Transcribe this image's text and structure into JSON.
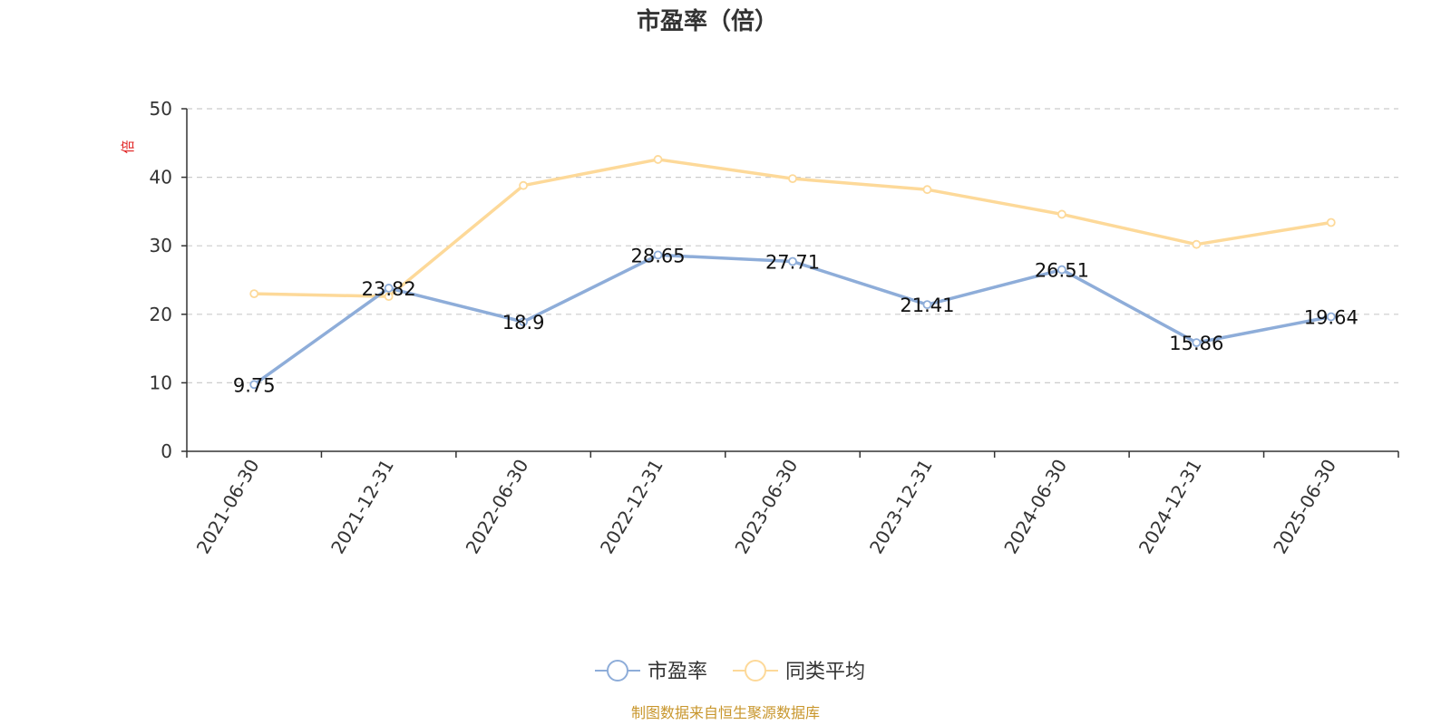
{
  "chart_data": {
    "type": "line",
    "title": "市盈率（倍）",
    "ylabel": "倍",
    "xlabel": "",
    "ylim": [
      0,
      50
    ],
    "yticks": [
      0,
      10,
      20,
      30,
      40,
      50
    ],
    "grid": true,
    "legend_position": "bottom-center",
    "categories": [
      "2021-06-30",
      "2021-12-31",
      "2022-06-30",
      "2022-12-31",
      "2023-06-30",
      "2023-12-31",
      "2024-06-30",
      "2024-12-31",
      "2025-06-30"
    ],
    "series": [
      {
        "name": "市盈率",
        "color": "#8eadd9",
        "show_labels": true,
        "values": [
          9.75,
          23.82,
          18.9,
          28.65,
          27.71,
          21.41,
          26.51,
          15.86,
          19.64
        ]
      },
      {
        "name": "同类平均",
        "color": "#fdd999",
        "show_labels": false,
        "values": [
          23.0,
          22.6,
          38.8,
          42.6,
          39.8,
          38.2,
          34.6,
          30.2,
          33.4
        ]
      }
    ]
  },
  "source": "制图数据来自恒生聚源数据库"
}
